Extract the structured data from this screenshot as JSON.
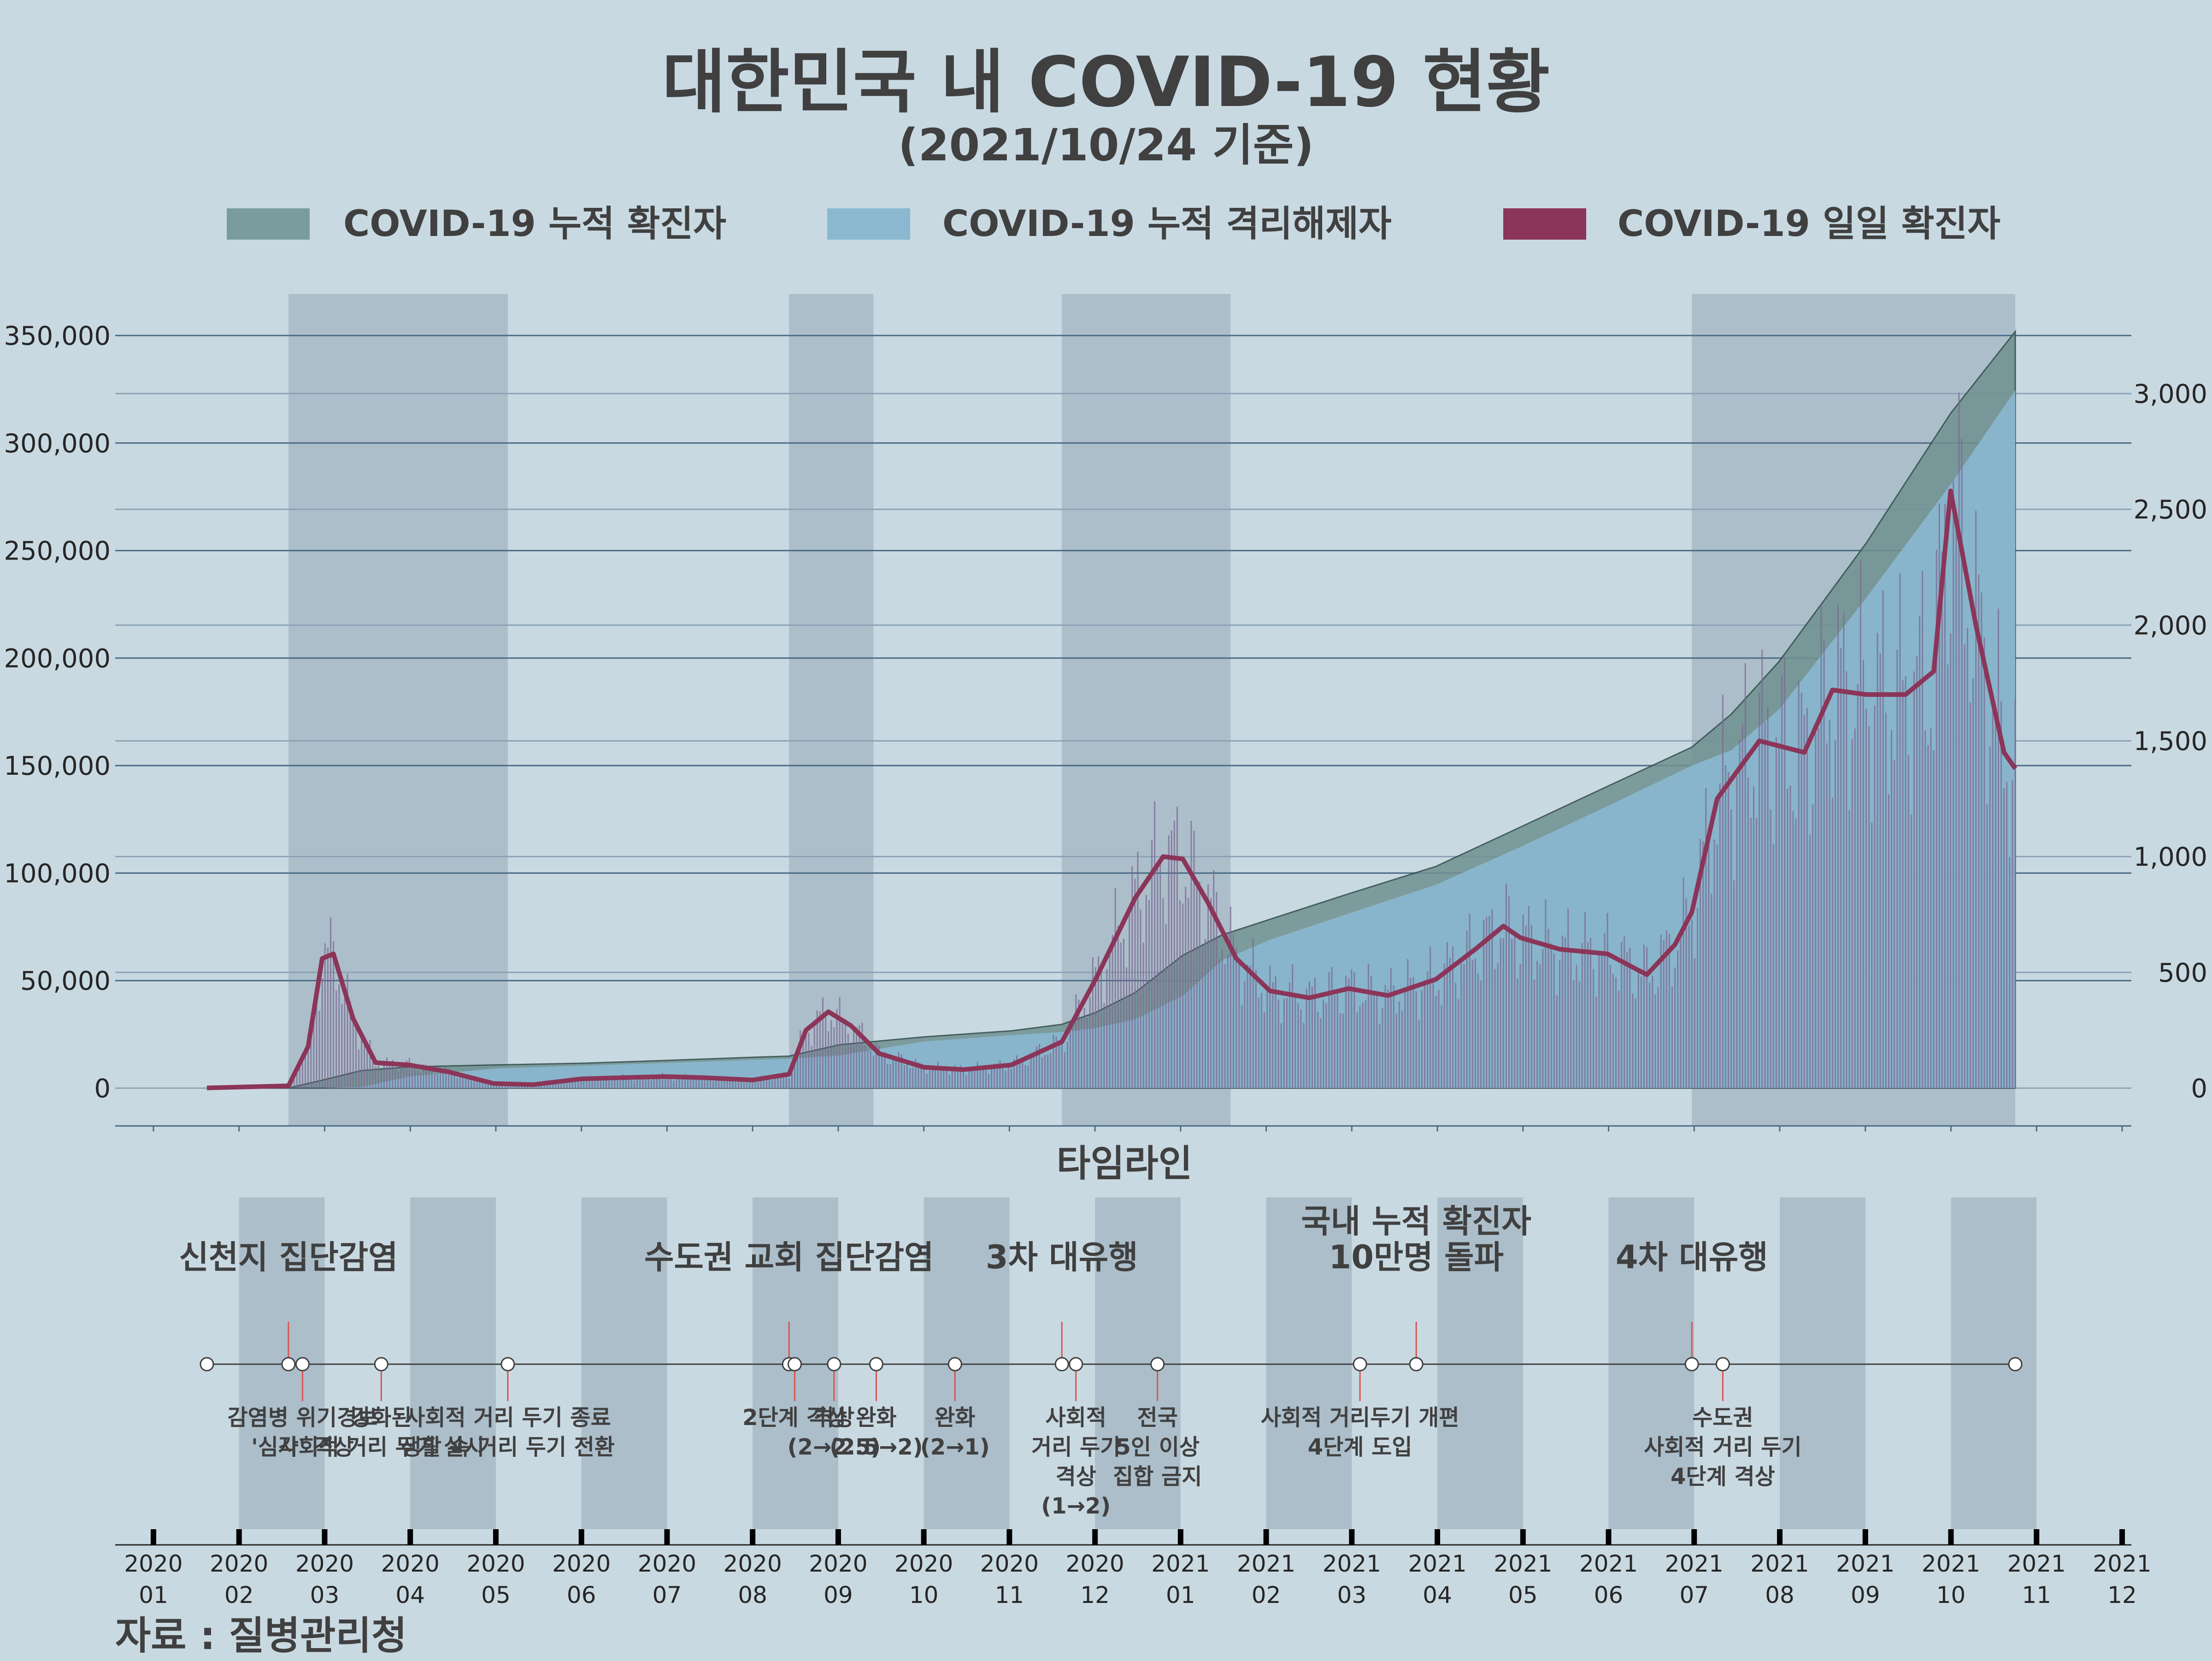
{
  "header": {
    "title": "대한민국 내 COVID-19 현황",
    "subtitle": "(2021/10/24 기준)"
  },
  "legend": [
    {
      "label": "COVID-19 누적 확진자",
      "color": "#7a9c9e"
    },
    {
      "label": "COVID-19 누적 격리해제자",
      "color": "#8ab8d0"
    },
    {
      "label": "COVID-19 일일 확진자",
      "color": "#8b3558"
    }
  ],
  "colors": {
    "background": "#c9d9e2",
    "cumulative_confirmed": "#6f9190",
    "cumulative_released": "#8ab8d0",
    "daily_confirmed": "#8b3558",
    "highlight_band": "#a7b8c6",
    "grid_left": "#4a6a85",
    "grid_right": "#8aa2b4",
    "event_line": "#d9534f"
  },
  "chart_data": {
    "type": "area",
    "x_unit": "date",
    "left_axis": {
      "ylim": [
        0,
        350000
      ],
      "ticks": [
        "0",
        "50,000",
        "100,000",
        "150,000",
        "200,000",
        "250,000",
        "300,000",
        "350,000"
      ]
    },
    "right_axis": {
      "ylim": [
        0,
        3000
      ],
      "ticks": [
        "0",
        "500",
        "1,000",
        "1,500",
        "2,000",
        "2,500",
        "3,000"
      ]
    },
    "highlight_periods": [
      [
        "2020-02-18",
        "2020-05-06"
      ],
      [
        "2020-08-14",
        "2020-09-13"
      ],
      [
        "2020-11-19",
        "2021-01-18"
      ],
      [
        "2021-07-01",
        "2021-10-24"
      ]
    ],
    "series": [
      {
        "name": "COVID-19 누적 확진자",
        "axis": "left",
        "points": [
          [
            "2020-01-20",
            0
          ],
          [
            "2020-02-18",
            31
          ],
          [
            "2020-03-01",
            3700
          ],
          [
            "2020-03-15",
            8160
          ],
          [
            "2020-04-01",
            9890
          ],
          [
            "2020-05-01",
            10770
          ],
          [
            "2020-06-01",
            11540
          ],
          [
            "2020-07-01",
            12850
          ],
          [
            "2020-08-01",
            14340
          ],
          [
            "2020-08-14",
            14870
          ],
          [
            "2020-09-01",
            20180
          ],
          [
            "2020-10-01",
            23810
          ],
          [
            "2020-11-01",
            26640
          ],
          [
            "2020-11-19",
            29650
          ],
          [
            "2020-12-01",
            35160
          ],
          [
            "2020-12-15",
            44360
          ],
          [
            "2021-01-01",
            61770
          ],
          [
            "2021-01-15",
            71240
          ],
          [
            "2021-02-01",
            78510
          ],
          [
            "2021-03-01",
            90370
          ],
          [
            "2021-04-01",
            103090
          ],
          [
            "2021-05-01",
            121350
          ],
          [
            "2021-06-01",
            140340
          ],
          [
            "2021-07-01",
            158550
          ],
          [
            "2021-07-15",
            173880
          ],
          [
            "2021-08-01",
            198350
          ],
          [
            "2021-09-01",
            253440
          ],
          [
            "2021-10-01",
            313770
          ],
          [
            "2021-10-24",
            351850
          ]
        ]
      },
      {
        "name": "COVID-19 누적 격리해제자",
        "axis": "left",
        "points": [
          [
            "2020-01-20",
            0
          ],
          [
            "2020-02-18",
            12
          ],
          [
            "2020-03-01",
            30
          ],
          [
            "2020-03-15",
            510
          ],
          [
            "2020-04-01",
            5410
          ],
          [
            "2020-05-01",
            9120
          ],
          [
            "2020-06-01",
            10450
          ],
          [
            "2020-07-01",
            11680
          ],
          [
            "2020-08-01",
            13110
          ],
          [
            "2020-08-14",
            13640
          ],
          [
            "2020-09-01",
            15200
          ],
          [
            "2020-10-01",
            21720
          ],
          [
            "2020-11-01",
            24650
          ],
          [
            "2020-11-19",
            26080
          ],
          [
            "2020-12-01",
            27980
          ],
          [
            "2020-12-15",
            32000
          ],
          [
            "2021-01-01",
            42950
          ],
          [
            "2021-01-15",
            59420
          ],
          [
            "2021-02-01",
            69010
          ],
          [
            "2021-03-01",
            81230
          ],
          [
            "2021-04-01",
            94610
          ],
          [
            "2021-05-01",
            112150
          ],
          [
            "2021-06-01",
            131120
          ],
          [
            "2021-07-01",
            150030
          ],
          [
            "2021-07-15",
            157130
          ],
          [
            "2021-08-01",
            176110
          ],
          [
            "2021-09-01",
            228010
          ],
          [
            "2021-10-01",
            280730
          ],
          [
            "2021-10-24",
            324570
          ]
        ]
      },
      {
        "name": "COVID-19 일일 확진자",
        "axis": "right",
        "points": [
          [
            "2020-01-20",
            1
          ],
          [
            "2020-02-18",
            10
          ],
          [
            "2020-02-25",
            180
          ],
          [
            "2020-03-01",
            560
          ],
          [
            "2020-03-05",
            580
          ],
          [
            "2020-03-12",
            300
          ],
          [
            "2020-03-20",
            110
          ],
          [
            "2020-04-01",
            100
          ],
          [
            "2020-04-15",
            70
          ],
          [
            "2020-05-01",
            20
          ],
          [
            "2020-05-15",
            15
          ],
          [
            "2020-06-01",
            40
          ],
          [
            "2020-06-15",
            45
          ],
          [
            "2020-07-01",
            50
          ],
          [
            "2020-07-15",
            45
          ],
          [
            "2020-08-01",
            35
          ],
          [
            "2020-08-14",
            60
          ],
          [
            "2020-08-20",
            250
          ],
          [
            "2020-08-28",
            330
          ],
          [
            "2020-09-05",
            270
          ],
          [
            "2020-09-15",
            150
          ],
          [
            "2020-10-01",
            90
          ],
          [
            "2020-10-15",
            80
          ],
          [
            "2020-11-01",
            100
          ],
          [
            "2020-11-19",
            200
          ],
          [
            "2020-12-01",
            470
          ],
          [
            "2020-12-15",
            820
          ],
          [
            "2020-12-25",
            1000
          ],
          [
            "2021-01-01",
            990
          ],
          [
            "2021-01-10",
            800
          ],
          [
            "2021-01-20",
            560
          ],
          [
            "2021-02-01",
            420
          ],
          [
            "2021-02-15",
            390
          ],
          [
            "2021-03-01",
            430
          ],
          [
            "2021-03-15",
            400
          ],
          [
            "2021-04-01",
            470
          ],
          [
            "2021-04-15",
            600
          ],
          [
            "2021-04-25",
            700
          ],
          [
            "2021-05-01",
            650
          ],
          [
            "2021-05-15",
            600
          ],
          [
            "2021-06-01",
            580
          ],
          [
            "2021-06-15",
            490
          ],
          [
            "2021-06-25",
            620
          ],
          [
            "2021-07-01",
            760
          ],
          [
            "2021-07-10",
            1250
          ],
          [
            "2021-07-25",
            1500
          ],
          [
            "2021-08-10",
            1450
          ],
          [
            "2021-08-20",
            1720
          ],
          [
            "2021-09-01",
            1700
          ],
          [
            "2021-09-15",
            1700
          ],
          [
            "2021-09-25",
            1800
          ],
          [
            "2021-10-01",
            2580
          ],
          [
            "2021-10-10",
            2000
          ],
          [
            "2021-10-20",
            1450
          ],
          [
            "2021-10-24",
            1380
          ]
        ]
      }
    ],
    "timeline": {
      "title": "타임라인",
      "months": [
        [
          "2020",
          "01"
        ],
        [
          "2020",
          "02"
        ],
        [
          "2020",
          "03"
        ],
        [
          "2020",
          "04"
        ],
        [
          "2020",
          "05"
        ],
        [
          "2020",
          "06"
        ],
        [
          "2020",
          "07"
        ],
        [
          "2020",
          "08"
        ],
        [
          "2020",
          "09"
        ],
        [
          "2020",
          "10"
        ],
        [
          "2020",
          "11"
        ],
        [
          "2020",
          "12"
        ],
        [
          "2021",
          "01"
        ],
        [
          "2021",
          "02"
        ],
        [
          "2021",
          "03"
        ],
        [
          "2021",
          "04"
        ],
        [
          "2021",
          "05"
        ],
        [
          "2021",
          "06"
        ],
        [
          "2021",
          "07"
        ],
        [
          "2021",
          "08"
        ],
        [
          "2021",
          "09"
        ],
        [
          "2021",
          "10"
        ],
        [
          "2021",
          "11"
        ],
        [
          "2021",
          "12"
        ]
      ],
      "major_events": [
        {
          "date": "2020-02-18",
          "label_lines": [
            "신천지 집단감염"
          ]
        },
        {
          "date": "2020-08-14",
          "label_lines": [
            "수도권 교회 집단감염"
          ]
        },
        {
          "date": "2020-11-19",
          "label_lines": [
            "3차 대유행"
          ]
        },
        {
          "date": "2021-03-25",
          "label_lines": [
            "국내 누적 확진자",
            "10만명 돌파"
          ]
        },
        {
          "date": "2021-07-01",
          "label_lines": [
            "4차 대유행"
          ]
        }
      ],
      "minor_events": [
        {
          "date": "2020-02-23",
          "label_lines": [
            "감염병 위기경보",
            "'심각' 격상"
          ]
        },
        {
          "date": "2020-03-22",
          "label_lines": [
            "강화된",
            "사회적 거리 두기 실시"
          ]
        },
        {
          "date": "2020-05-06",
          "label_lines": [
            "사회적 거리 두기 종료",
            "생활 속 거리 두기 전환"
          ]
        },
        {
          "date": "2020-08-16",
          "label_lines": [
            "2단계 격상"
          ]
        },
        {
          "date": "2020-08-30",
          "label_lines": [
            "격상",
            "(2→2.5)"
          ]
        },
        {
          "date": "2020-09-14",
          "label_lines": [
            "완화",
            "(2.5→2)"
          ]
        },
        {
          "date": "2020-10-12",
          "label_lines": [
            "완화",
            "(2→1)"
          ]
        },
        {
          "date": "2020-11-24",
          "label_lines": [
            "사회적",
            "거리 두기",
            "격상",
            "(1→2)"
          ]
        },
        {
          "date": "2020-12-23",
          "label_lines": [
            "전국",
            "5인 이상",
            "집합 금지"
          ]
        },
        {
          "date": "2021-03-05",
          "label_lines": [
            "사회적 거리두기 개편",
            "4단계 도입"
          ]
        },
        {
          "date": "2021-07-12",
          "label_lines": [
            "수도권",
            "사회적 거리 두기",
            "4단계 격상"
          ]
        }
      ],
      "end_date": "2021-10-24"
    },
    "source": "자료 : 질병관리청"
  }
}
